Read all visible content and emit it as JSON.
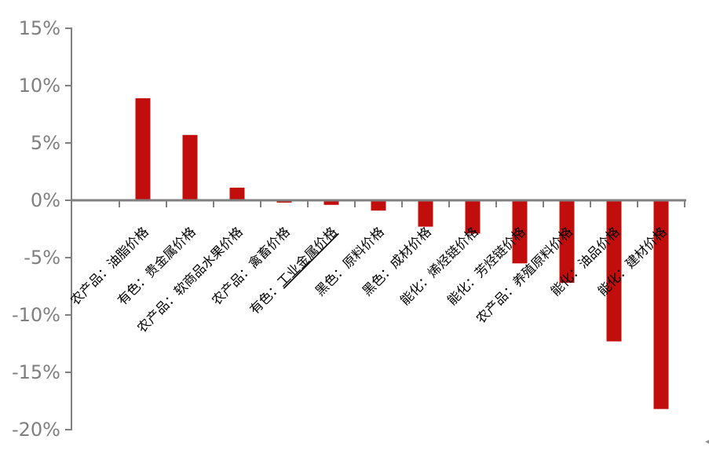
{
  "chart_data": {
    "type": "bar",
    "title": "",
    "xlabel": "",
    "ylabel": "",
    "categories": [
      "农产品：油脂价格",
      "有色：贵金属价格",
      "农产品：软商品水果价格",
      "农产品：禽畜价格",
      "有色：工业金属价格",
      "黑色：原料价格",
      "黑色：成材价格",
      "能化：烯烃链价格",
      "能化：芳烃链价格",
      "农产品：养殖原料价格",
      "能化：油品价格",
      "能化：建材价格"
    ],
    "values": [
      8.9,
      5.7,
      1.1,
      -0.2,
      -0.4,
      -0.9,
      -2.3,
      -2.9,
      -5.5,
      -7.2,
      -12.3,
      -18.2
    ],
    "underline": {
      "category_index": 4,
      "prefix": "有色：",
      "underlined_text": "工业金属价格"
    },
    "ylim": [
      -20,
      15
    ],
    "ytick_step": 5,
    "ytick_labels": [
      "15%",
      "10%",
      "5%",
      "0%",
      "-5%",
      "-10%",
      "-15%",
      "-20%"
    ],
    "grid": false,
    "legend_position": "none",
    "category_label_rotation_deg": -45,
    "colors": {
      "bar": "#C20D0D",
      "axis": "#808080",
      "ytick_label": "#7F7F7F",
      "category_label": "#000000"
    }
  },
  "decorations": {
    "corner_arrow_icon": "◀"
  }
}
